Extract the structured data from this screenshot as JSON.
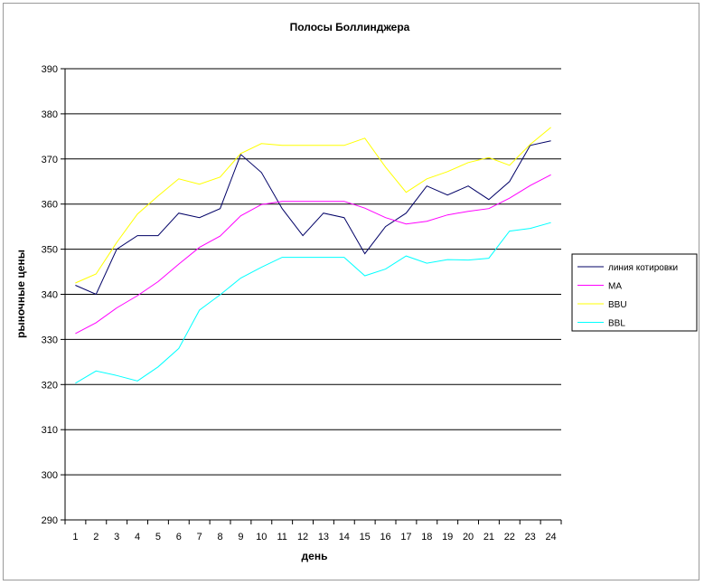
{
  "chart_data": {
    "type": "line",
    "title": "Полосы Боллинджера",
    "xlabel": "день",
    "ylabel": "рыночные цены",
    "x": [
      1,
      2,
      3,
      4,
      5,
      6,
      7,
      8,
      9,
      10,
      11,
      12,
      13,
      14,
      15,
      16,
      17,
      18,
      19,
      20,
      21,
      22,
      23,
      24
    ],
    "ylim": [
      290,
      390
    ],
    "yticks": [
      290,
      300,
      310,
      320,
      330,
      340,
      350,
      360,
      370,
      380,
      390
    ],
    "grid": true,
    "legend_position": "right",
    "series": [
      {
        "name": "линия котировки",
        "color": "#000066",
        "values": [
          342,
          340,
          350,
          353,
          353,
          358,
          357,
          359,
          371,
          367,
          359,
          353,
          358,
          357,
          349,
          355,
          358,
          364,
          362,
          364,
          361,
          365,
          373,
          374
        ]
      },
      {
        "name": "МА",
        "color": "#ff00ff",
        "values": [
          331.3,
          333.7,
          337,
          339.7,
          342.8,
          346.7,
          350.4,
          352.9,
          357.4,
          359.9,
          360.6,
          360.6,
          360.6,
          360.6,
          359.1,
          357,
          355.6,
          356.2,
          357.6,
          358.4,
          359,
          361.3,
          364.1,
          366.5
        ]
      },
      {
        "name": "BBU",
        "color": "#ffff00",
        "values": [
          342.5,
          344.5,
          351.5,
          357.8,
          361.8,
          365.6,
          364.4,
          366,
          371.2,
          373.4,
          373,
          373,
          373,
          373,
          374.6,
          368.2,
          362.6,
          365.6,
          367.2,
          369.2,
          370.3,
          368.6,
          373.2,
          377
        ]
      },
      {
        "name": "BBL",
        "color": "#00ffff",
        "values": [
          320.3,
          323,
          322,
          320.8,
          323.9,
          328,
          336.5,
          339.9,
          343.6,
          346,
          348.2,
          348.2,
          348.2,
          348.2,
          344.1,
          345.6,
          348.5,
          346.9,
          347.7,
          347.6,
          348,
          354,
          354.6,
          355.9
        ]
      }
    ]
  }
}
